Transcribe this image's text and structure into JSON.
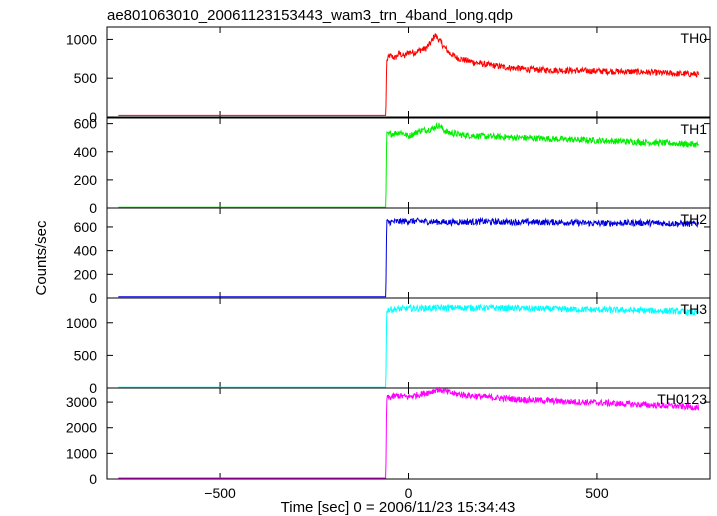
{
  "chart_data": {
    "type": "line",
    "title": "ae801063010_20061123153443_wam3_trn_4band_long.qdp",
    "xlabel": "Time [sec] 0 = 2006/11/23 15:34:43",
    "ylabel": "Counts/sec",
    "xlim": [
      -800,
      800
    ],
    "x_ticks": [
      -500,
      0,
      500
    ],
    "x_tick_labels": [
      "−500",
      "0",
      "500"
    ],
    "panels": [
      {
        "name": "TH0",
        "color": "#ff0000",
        "ylim": [
          0,
          1160
        ],
        "yticks": [
          0,
          500,
          1000
        ],
        "x": [
          -770,
          -60,
          -58,
          -50,
          -35,
          -25,
          -10,
          0,
          15,
          30,
          45,
          60,
          70,
          80,
          95,
          110,
          130,
          160,
          200,
          260,
          330,
          420,
          520,
          620,
          700,
          770
        ],
        "values": [
          20,
          20,
          720,
          790,
          760,
          820,
          780,
          840,
          830,
          860,
          880,
          960,
          1060,
          1000,
          900,
          820,
          760,
          720,
          680,
          640,
          610,
          600,
          590,
          580,
          560,
          550
        ]
      },
      {
        "name": "TH1",
        "color": "#00ee00",
        "ylim": [
          0,
          640
        ],
        "yticks": [
          0,
          200,
          400,
          600
        ],
        "x": [
          -770,
          -60,
          -58,
          -40,
          -20,
          0,
          30,
          60,
          80,
          100,
          140,
          200,
          300,
          400,
          500,
          600,
          700,
          770
        ],
        "values": [
          5,
          5,
          520,
          530,
          540,
          510,
          550,
          560,
          590,
          540,
          520,
          510,
          500,
          490,
          480,
          470,
          460,
          450
        ]
      },
      {
        "name": "TH2",
        "color": "#0000dd",
        "ylim": [
          0,
          760
        ],
        "yticks": [
          0,
          200,
          400,
          600
        ],
        "x": [
          -770,
          -60,
          -58,
          0,
          100,
          200,
          300,
          400,
          500,
          600,
          700,
          770
        ],
        "values": [
          10,
          10,
          640,
          650,
          640,
          645,
          640,
          640,
          630,
          635,
          630,
          625
        ]
      },
      {
        "name": "TH3",
        "color": "#00ffff",
        "ylim": [
          0,
          1380
        ],
        "yticks": [
          0,
          500,
          1000
        ],
        "x": [
          -770,
          -60,
          -58,
          0,
          100,
          200,
          300,
          400,
          500,
          600,
          700,
          770
        ],
        "values": [
          10,
          10,
          1200,
          1220,
          1230,
          1230,
          1220,
          1210,
          1200,
          1190,
          1180,
          1150
        ]
      },
      {
        "name": "TH0123",
        "color": "#ff00ff",
        "ylim": [
          0,
          3550
        ],
        "yticks": [
          0,
          1000,
          2000,
          3000
        ],
        "x": [
          -770,
          -60,
          -58,
          -30,
          0,
          30,
          60,
          75,
          90,
          120,
          160,
          220,
          300,
          400,
          500,
          600,
          700,
          770
        ],
        "values": [
          40,
          40,
          3150,
          3250,
          3200,
          3300,
          3400,
          3500,
          3450,
          3330,
          3260,
          3180,
          3100,
          3030,
          2980,
          2910,
          2850,
          2790
        ]
      }
    ]
  }
}
